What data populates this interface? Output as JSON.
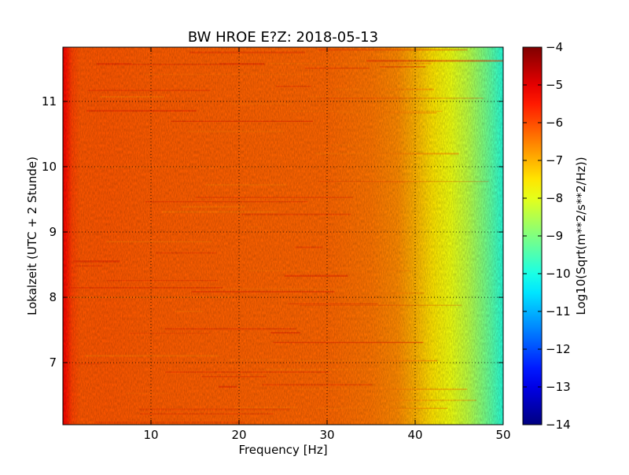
{
  "chart_data": {
    "type": "heatmap",
    "title": "BW HROE E?Z: 2018-05-13",
    "xlabel": "Frequency [Hz]",
    "ylabel": "Lokalzeit (UTC + 2 Stunde)",
    "xlim": [
      0,
      50
    ],
    "ylim": [
      11.83,
      6.05
    ],
    "y_inverted": true,
    "x_ticks": [
      10,
      20,
      30,
      40,
      50
    ],
    "y_ticks": [
      7,
      8,
      9,
      10,
      11
    ],
    "grid": true,
    "grid_style": "dotted",
    "colormap": "jet",
    "colorbar": {
      "label": "Log10(Sqrt(m**2/s**2/Hz))",
      "range": [
        -14,
        -4
      ],
      "ticks": [
        -4,
        -5,
        -6,
        -7,
        -8,
        -9,
        -10,
        -11,
        -12,
        -13,
        -14
      ]
    },
    "spectral_profile": {
      "frequency_hz": [
        0,
        0.5,
        1,
        2,
        5,
        10,
        20,
        30,
        35,
        38,
        40,
        42,
        44,
        46,
        48,
        49,
        50
      ],
      "log10_amplitude": [
        -5.2,
        -5.5,
        -5.9,
        -6.1,
        -6.1,
        -6.15,
        -6.2,
        -6.25,
        -6.4,
        -6.6,
        -7.0,
        -7.5,
        -7.9,
        -8.4,
        -9.1,
        -9.5,
        -9.9
      ]
    }
  }
}
